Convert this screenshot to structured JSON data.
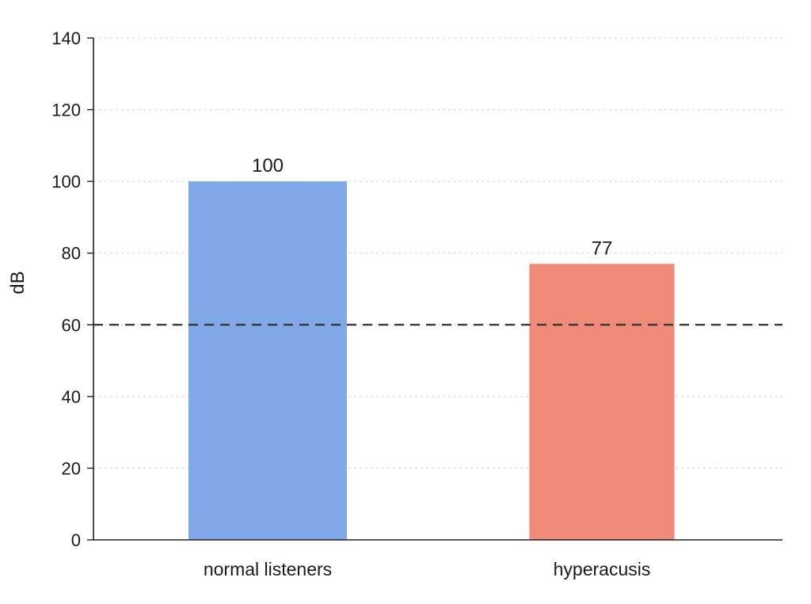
{
  "chart_data": {
    "type": "bar",
    "categories": [
      "normal listeners",
      "hyperacusis"
    ],
    "values": [
      100,
      77
    ],
    "data_labels": [
      "100",
      "77"
    ],
    "bar_colors": [
      "#80a8e6",
      "#f08b7a"
    ],
    "title": "",
    "xlabel": "",
    "ylabel": "dB",
    "ylim": [
      0,
      140
    ],
    "yticks": [
      0,
      20,
      40,
      60,
      80,
      100,
      120,
      140
    ],
    "grid": true,
    "reference_line": {
      "y": 60,
      "style": "dashed",
      "color": "#333333"
    }
  }
}
